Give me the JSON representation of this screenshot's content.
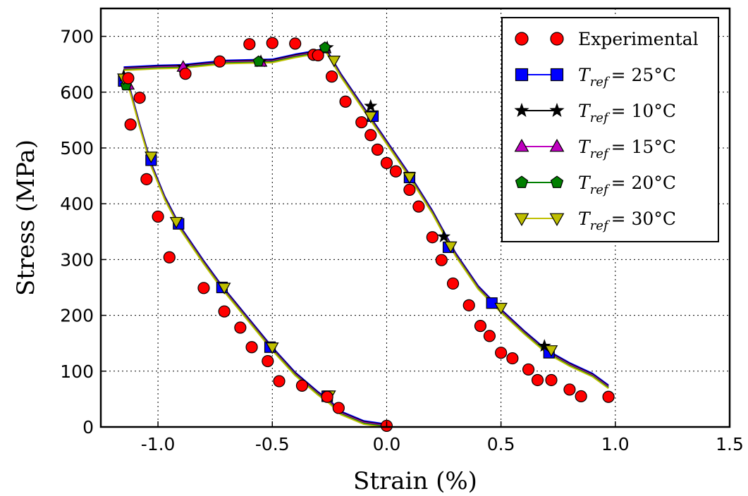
{
  "chart_data": {
    "type": "line",
    "xlabel": "Strain (%)",
    "ylabel": "Stress (MPa)",
    "xlim": [
      -1.25,
      1.5
    ],
    "ylim": [
      0,
      750
    ],
    "xticks": [
      -1.0,
      -0.5,
      0.0,
      0.5,
      1.0,
      1.5
    ],
    "xtick_labels": [
      "-1.0",
      "-0.5",
      "0.0",
      "0.5",
      "1.0",
      "1.5"
    ],
    "yticks": [
      0,
      100,
      200,
      300,
      400,
      500,
      600,
      700
    ],
    "ytick_labels": [
      "0",
      "100",
      "200",
      "300",
      "400",
      "500",
      "600",
      "700"
    ],
    "grid": true,
    "legend_position": "top-right",
    "experimental": {
      "name": "Experimental",
      "color": "#ff0000",
      "x": [
        -1.13,
        -1.12,
        -1.08,
        -1.05,
        -1.0,
        -0.95,
        -0.88,
        -0.8,
        -0.73,
        -0.71,
        -0.64,
        -0.59,
        -0.52,
        -0.47,
        -0.37,
        -0.32,
        -0.26,
        -0.24,
        -0.21,
        -0.18,
        -0.11,
        -0.07,
        -0.04,
        0.0,
        0.04,
        0.1,
        0.14,
        0.2,
        0.24,
        0.29,
        0.36,
        0.41,
        0.45,
        0.5,
        0.55,
        0.62,
        0.66,
        0.72,
        0.8,
        0.85,
        0.97,
        -0.6,
        -0.5,
        -0.4,
        -0.3,
        0.0
      ],
      "y": [
        625,
        542,
        590,
        444,
        377,
        304,
        633,
        249,
        655,
        207,
        178,
        143,
        118,
        82,
        74,
        667,
        54,
        628,
        34,
        583,
        546,
        523,
        497,
        473,
        458,
        425,
        395,
        340,
        299,
        257,
        218,
        181,
        163,
        133,
        123,
        103,
        84,
        84,
        67,
        55,
        54,
        686,
        688,
        687,
        666,
        2
      ]
    },
    "series": [
      {
        "name": "T_ref=25°C",
        "color": "#0000ff",
        "marker": "square",
        "x": [
          -1.15,
          -1.03,
          -0.91,
          -0.72,
          -0.51,
          -0.26,
          -0.06,
          0.1,
          0.27,
          0.46,
          0.71
        ],
        "y": [
          620,
          478,
          364,
          250,
          143,
          55,
          557,
          447,
          322,
          222,
          133
        ]
      },
      {
        "name": "T_ref=10°C",
        "color": "#000000",
        "marker": "star",
        "x": [
          -1.15,
          -0.89,
          -0.55,
          -0.26,
          -0.07,
          0.25,
          0.69
        ],
        "y": [
          629,
          645,
          655,
          680,
          575,
          341,
          145
        ]
      },
      {
        "name": "T_ref=15°C",
        "color": "#bf00bf",
        "marker": "triangle-up",
        "x": [
          -1.13,
          -0.89,
          -0.55,
          -0.27
        ],
        "y": [
          613,
          645,
          654,
          678
        ]
      },
      {
        "name": "T_ref=20°C",
        "color": "#007f00",
        "marker": "pentagon",
        "x": [
          -1.14,
          -0.56,
          -0.27
        ],
        "y": [
          612,
          655,
          680
        ]
      },
      {
        "name": "T_ref=30°C",
        "color": "#bfbf00",
        "marker": "triangle-down",
        "x": [
          -1.15,
          -1.03,
          -0.92,
          -0.71,
          -0.5,
          -0.25,
          -0.23,
          -0.07,
          0.1,
          0.28,
          0.5,
          0.72
        ],
        "y": [
          625,
          485,
          368,
          250,
          143,
          57,
          657,
          557,
          448,
          324,
          214,
          138
        ]
      }
    ],
    "curves": {
      "upper": {
        "x": [
          -1.15,
          -1.1,
          -1.0,
          -0.9,
          -0.8,
          -0.7,
          -0.6,
          -0.5,
          -0.4,
          -0.3,
          -0.27
        ],
        "y": [
          642,
          643,
          645,
          646,
          650,
          654,
          655,
          656,
          665,
          672,
          678
        ]
      },
      "unload": {
        "x": [
          -0.27,
          -0.2,
          -0.1,
          0.0,
          0.1,
          0.2,
          0.3,
          0.4,
          0.5,
          0.6,
          0.7,
          0.8,
          0.9,
          0.97
        ],
        "y": [
          678,
          630,
          570,
          510,
          450,
          385,
          310,
          250,
          208,
          170,
          135,
          112,
          93,
          72
        ]
      },
      "reload": {
        "x": [
          -1.15,
          -1.12,
          -1.08,
          -1.03,
          -0.97,
          -0.9,
          -0.8,
          -0.72,
          -0.6,
          -0.5,
          -0.4,
          -0.3,
          -0.25,
          -0.2,
          -0.1,
          0.0
        ],
        "y": [
          635,
          600,
          540,
          470,
          410,
          355,
          295,
          250,
          190,
          140,
          95,
          60,
          45,
          25,
          8,
          2
        ]
      }
    },
    "legend_entries": [
      {
        "key": "experimental",
        "label": "Experimental"
      },
      {
        "key": "s0",
        "label_prefix": "T",
        "label_sub": "ref",
        "label_suffix": "= 25°C"
      },
      {
        "key": "s1",
        "label_prefix": "T",
        "label_sub": "ref",
        "label_suffix": "= 10°C"
      },
      {
        "key": "s2",
        "label_prefix": "T",
        "label_sub": "ref",
        "label_suffix": "= 15°C"
      },
      {
        "key": "s3",
        "label_prefix": "T",
        "label_sub": "ref",
        "label_suffix": "= 20°C"
      },
      {
        "key": "s4",
        "label_prefix": "T",
        "label_sub": "ref",
        "label_suffix": "= 30°C"
      }
    ]
  }
}
